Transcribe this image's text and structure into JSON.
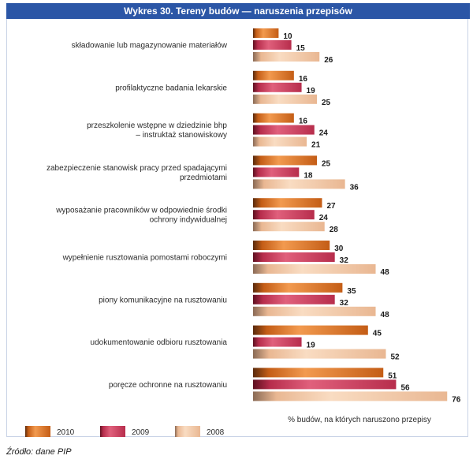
{
  "chart_data": {
    "type": "bar",
    "orientation": "horizontal",
    "title": "Wykres 30. Tereny budów — naruszenia przepisów",
    "xlabel": "% budów, na których naruszono przepisy",
    "categories": [
      [
        "składowanie lub magazynowanie materiałów"
      ],
      [
        "profilaktyczne badania lekarskie"
      ],
      [
        "przeszkolenie wstępne w dziedzinie bhp",
        "– instruktaż stanowiskowy"
      ],
      [
        "zabezpieczenie stanowisk pracy przed spadającymi",
        "przedmiotami"
      ],
      [
        "wyposażanie pracowników w odpowiednie środki",
        "ochrony indywidualnej"
      ],
      [
        "wypełnienie rusztowania pomostami roboczymi"
      ],
      [
        "piony komunikacyjne na rusztowaniu"
      ],
      [
        "udokumentowanie odbioru rusztowania"
      ],
      [
        "poręcze ochronne na rusztowaniu"
      ]
    ],
    "series": [
      {
        "name": "2010",
        "color": "#e0762a",
        "values": [
          10,
          16,
          16,
          25,
          27,
          30,
          35,
          45,
          51
        ]
      },
      {
        "name": "2009",
        "color": "#c8375a",
        "values": [
          15,
          19,
          24,
          18,
          24,
          32,
          32,
          19,
          56
        ]
      },
      {
        "name": "2008",
        "color": "#f0c4a0",
        "values": [
          26,
          25,
          21,
          36,
          28,
          48,
          48,
          52,
          76
        ]
      }
    ],
    "xlim": [
      0,
      80
    ],
    "grid": false,
    "legend_position": "bottom"
  },
  "source": "Źródło: dane PIP"
}
